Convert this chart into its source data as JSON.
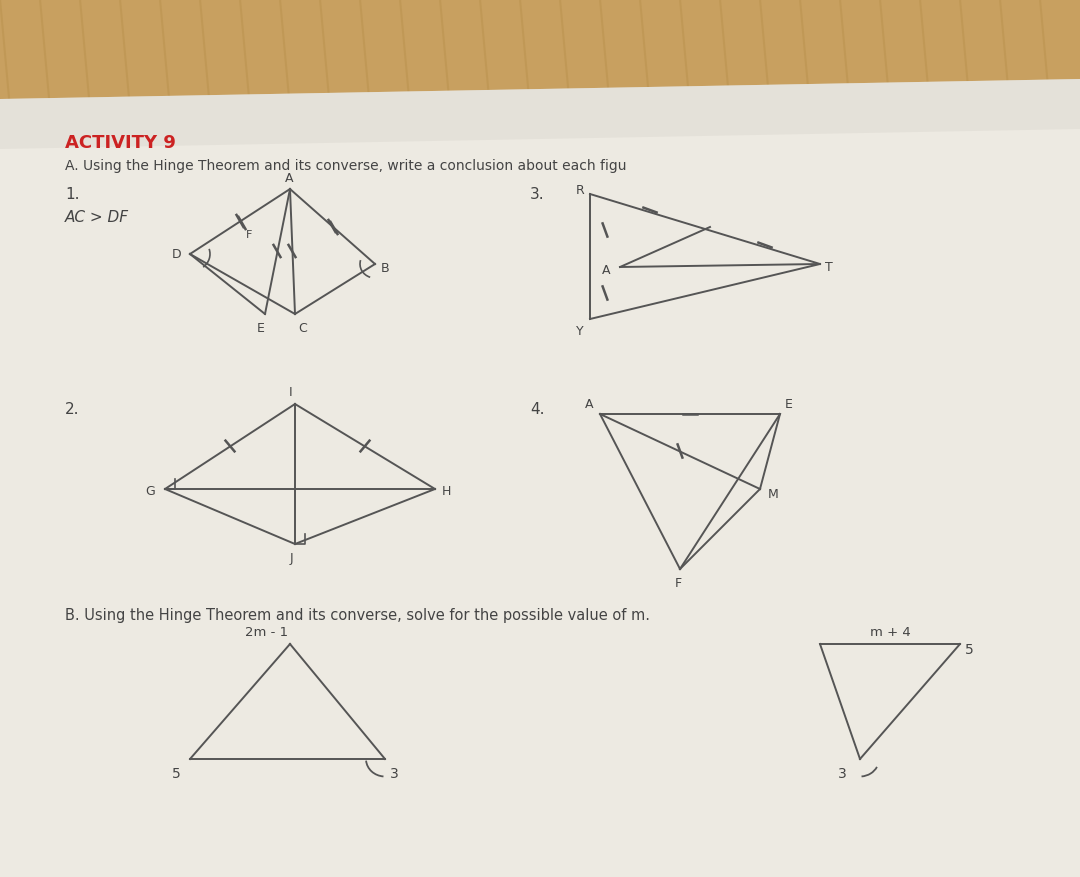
{
  "title": "ACTIVITY 9",
  "title_color": "#cc2222",
  "subtitle_A": "A. Using the Hinge Theorem and its converse, write a conclusion about each figu",
  "subtitle_B": "B. Using the Hinge Theorem and its converse, solve for the possible value of m.",
  "line_color": "#555555",
  "text_color": "#444444",
  "page_color": "#eceae4",
  "wood_color": "#c8a060",
  "wood_color2": "#b89050"
}
